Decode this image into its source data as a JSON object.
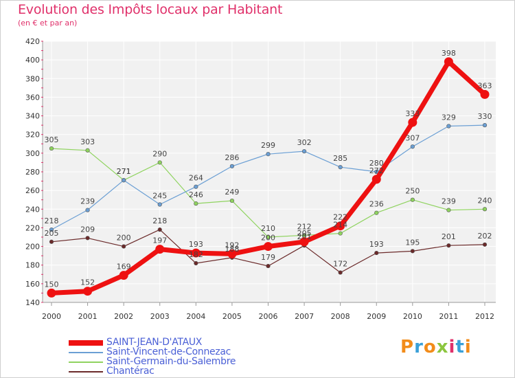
{
  "title": "Evolution des Impôts locaux par Habitant",
  "subtitle": "(en € et par an)",
  "logo": {
    "text": "Proxiti",
    "colors": [
      "#f28c1a",
      "#3aa0d8",
      "#f28c1a",
      "#8cc63f",
      "#e0306a",
      "#3aa0d8",
      "#f28c1a"
    ]
  },
  "chart_data": {
    "type": "line",
    "title": "Evolution des Impôts locaux par Habitant",
    "subtitle": "(en € et par an)",
    "xlabel": "",
    "ylabel": "",
    "categories": [
      "2000",
      "2001",
      "2002",
      "2003",
      "2004",
      "2005",
      "2006",
      "2007",
      "2008",
      "2009",
      "2010",
      "2011",
      "2012"
    ],
    "ylim": [
      140,
      420
    ],
    "yticks": [
      140,
      160,
      180,
      200,
      220,
      240,
      260,
      280,
      300,
      320,
      340,
      360,
      380,
      400,
      420
    ],
    "grid": true,
    "legend_position": "bottom-left",
    "series": [
      {
        "name": "Saint-Germain-du-Salembre",
        "color": "#8fd35f",
        "width": 1.2,
        "marker": 2.8,
        "values": [
          305,
          303,
          271,
          290,
          246,
          249,
          210,
          212,
          214,
          236,
          250,
          239,
          240
        ]
      },
      {
        "name": "Saint-Vincent-de-Connezac",
        "color": "#6b9fd4",
        "width": 1.2,
        "marker": 2.8,
        "values": [
          218,
          239,
          271,
          245,
          264,
          286,
          299,
          302,
          285,
          280,
          307,
          329,
          330
        ]
      },
      {
        "name": "Chantérac",
        "color": "#6b2a2a",
        "width": 1.2,
        "marker": 2.8,
        "values": [
          205,
          209,
          200,
          218,
          182,
          188,
          179,
          201,
          172,
          193,
          195,
          201,
          202
        ]
      },
      {
        "name": "SAINT-JEAN-D'ATAUX",
        "color": "#ee1111",
        "width": 7,
        "marker": 6.5,
        "values": [
          150,
          152,
          169,
          197,
          193,
          192,
          200,
          205,
          222,
          272,
          333,
          398,
          363
        ]
      }
    ],
    "legend": [
      "SAINT-JEAN-D'ATAUX",
      "Saint-Vincent-de-Connezac",
      "Saint-Germain-du-Salembre",
      "Chantérac"
    ]
  }
}
